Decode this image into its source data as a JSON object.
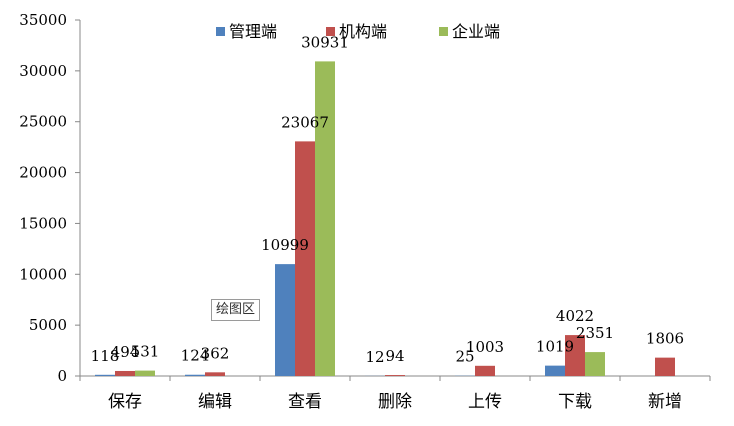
{
  "chart_data": {
    "type": "bar",
    "title": "",
    "xlabel": "",
    "ylabel": "",
    "categories": [
      "保存",
      "编辑",
      "查看",
      "删除",
      "上传",
      "下载",
      "新增"
    ],
    "ylim": [
      0,
      35000
    ],
    "yticks": [
      0,
      5000,
      10000,
      15000,
      20000,
      25000,
      30000,
      35000
    ],
    "grid": false,
    "legend_position": "top",
    "series": [
      {
        "name": "管理端",
        "color": "#4f81bd",
        "values": [
          118,
          124,
          10999,
          12,
          25,
          1019,
          null
        ]
      },
      {
        "name": "机构端",
        "color": "#c0504d",
        "values": [
          494,
          362,
          23067,
          94,
          1003,
          4022,
          1806
        ]
      },
      {
        "name": "企业端",
        "color": "#9bbb59",
        "values": [
          531,
          null,
          30931,
          null,
          null,
          2351,
          null
        ]
      }
    ]
  },
  "tooltip": {
    "text": "绘图区"
  }
}
